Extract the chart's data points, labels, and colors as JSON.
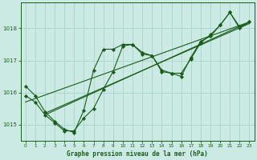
{
  "title": "Graphe pression niveau de la mer (hPa)",
  "bg_color": "#cceae4",
  "grid_color": "#aad4cc",
  "line_color": "#1a5c1a",
  "xlim": [
    -0.5,
    23.5
  ],
  "ylim": [
    1014.5,
    1018.8
  ],
  "xticks": [
    0,
    1,
    2,
    3,
    4,
    5,
    6,
    7,
    8,
    9,
    10,
    11,
    12,
    13,
    14,
    15,
    16,
    17,
    18,
    19,
    20,
    21,
    22,
    23
  ],
  "yticks": [
    1015,
    1016,
    1017,
    1018
  ],
  "line1_x": [
    0,
    1,
    2,
    3,
    4,
    5,
    6,
    7,
    8,
    9,
    10,
    11,
    12,
    13,
    14,
    15,
    16,
    17,
    18,
    19,
    20,
    21,
    22,
    23
  ],
  "line1_y": [
    1016.2,
    1015.9,
    1015.4,
    1015.1,
    1014.85,
    1014.75,
    1015.45,
    1016.7,
    1017.35,
    1017.35,
    1017.5,
    1017.5,
    1017.2,
    1017.15,
    1016.65,
    1016.6,
    1016.6,
    1017.05,
    1017.55,
    1017.8,
    1018.1,
    1018.5,
    1018.05,
    1018.2
  ],
  "line2_x": [
    0,
    1,
    2,
    3,
    4,
    5,
    6,
    7,
    8,
    9,
    10,
    11,
    12,
    13,
    14,
    15,
    16,
    17,
    18,
    19,
    20,
    21,
    22,
    23
  ],
  "line2_y": [
    1015.9,
    1015.7,
    1015.3,
    1015.05,
    1014.8,
    1014.8,
    1015.2,
    1015.5,
    1016.1,
    1016.65,
    1017.45,
    1017.5,
    1017.25,
    1017.15,
    1016.7,
    1016.6,
    1016.5,
    1017.1,
    1017.6,
    1017.75,
    1018.1,
    1018.5,
    1018.0,
    1018.2
  ],
  "trend1_x": [
    0,
    23
  ],
  "trend1_y": [
    1015.7,
    1018.2
  ],
  "trend2_x": [
    2,
    23
  ],
  "trend2_y": [
    1015.3,
    1018.2
  ],
  "trend3_x": [
    2,
    23
  ],
  "trend3_y": [
    1015.35,
    1018.15
  ]
}
